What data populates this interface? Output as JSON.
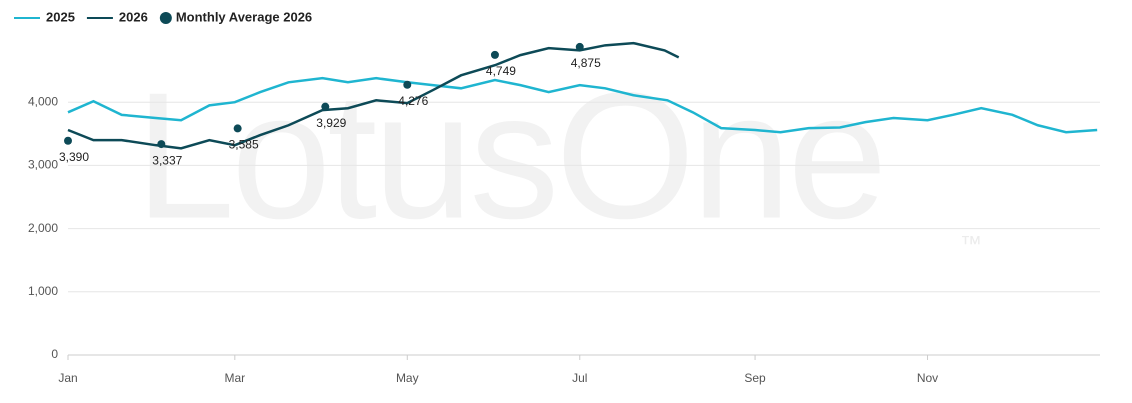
{
  "watermark": "LotusOne",
  "watermark_mark": "™",
  "chart_data": {
    "type": "line",
    "xlim": [
      1,
      366
    ],
    "ylim": [
      0,
      5000
    ],
    "xticks": [
      {
        "value": 1,
        "label": "Jan"
      },
      {
        "value": 60,
        "label": "Mar"
      },
      {
        "value": 121,
        "label": "May"
      },
      {
        "value": 182,
        "label": "Jul"
      },
      {
        "value": 244,
        "label": "Sep"
      },
      {
        "value": 305,
        "label": "Nov"
      }
    ],
    "yticks": [
      0,
      {
        "value": 1000,
        "label": "1,000"
      },
      {
        "value": 2000,
        "label": "2,000"
      },
      {
        "value": 3000,
        "label": "3,000"
      },
      {
        "value": 4000,
        "label": "4,000"
      }
    ],
    "grid": true,
    "legend": "top-left",
    "series": [
      {
        "name": "2025",
        "color": "#1fb5d0",
        "x": [
          1,
          10,
          20,
          32,
          41,
          51,
          60,
          69,
          79,
          91,
          100,
          110,
          121,
          130,
          140,
          152,
          161,
          171,
          182,
          191,
          201,
          213,
          222,
          232,
          244,
          253,
          263,
          274,
          283,
          293,
          305,
          314,
          324,
          335,
          344,
          354,
          365
        ],
        "values": [
          3840,
          4015,
          3800,
          3750,
          3715,
          3950,
          4000,
          4160,
          4315,
          4380,
          4315,
          4380,
          4315,
          4270,
          4220,
          4350,
          4270,
          4160,
          4270,
          4220,
          4110,
          4030,
          3840,
          3590,
          3560,
          3525,
          3590,
          3600,
          3685,
          3750,
          3715,
          3800,
          3905,
          3800,
          3635,
          3525,
          3560
        ]
      },
      {
        "name": "2026",
        "color": "#0d4a57",
        "x": [
          1,
          10,
          20,
          32,
          41,
          51,
          60,
          69,
          79,
          91,
          100,
          110,
          121,
          130,
          140,
          152,
          161,
          171,
          182,
          191,
          201,
          212,
          217
        ],
        "values": [
          3560,
          3400,
          3400,
          3320,
          3270,
          3400,
          3320,
          3480,
          3635,
          3875,
          3905,
          4030,
          3985,
          4190,
          4425,
          4585,
          4745,
          4855,
          4820,
          4900,
          4935,
          4820,
          4710
        ]
      },
      {
        "name": "Monthly Average 2026",
        "color": "#0d4a57",
        "kind": "dots",
        "x": [
          1,
          34,
          61,
          92,
          121,
          152,
          182
        ],
        "values": [
          3390,
          3337,
          3585,
          3929,
          4276,
          4749,
          4875
        ],
        "value_labels": [
          "3,390",
          "3,337",
          "3,585",
          "3,929",
          "4,276",
          "4,749",
          "4,875"
        ]
      }
    ]
  }
}
